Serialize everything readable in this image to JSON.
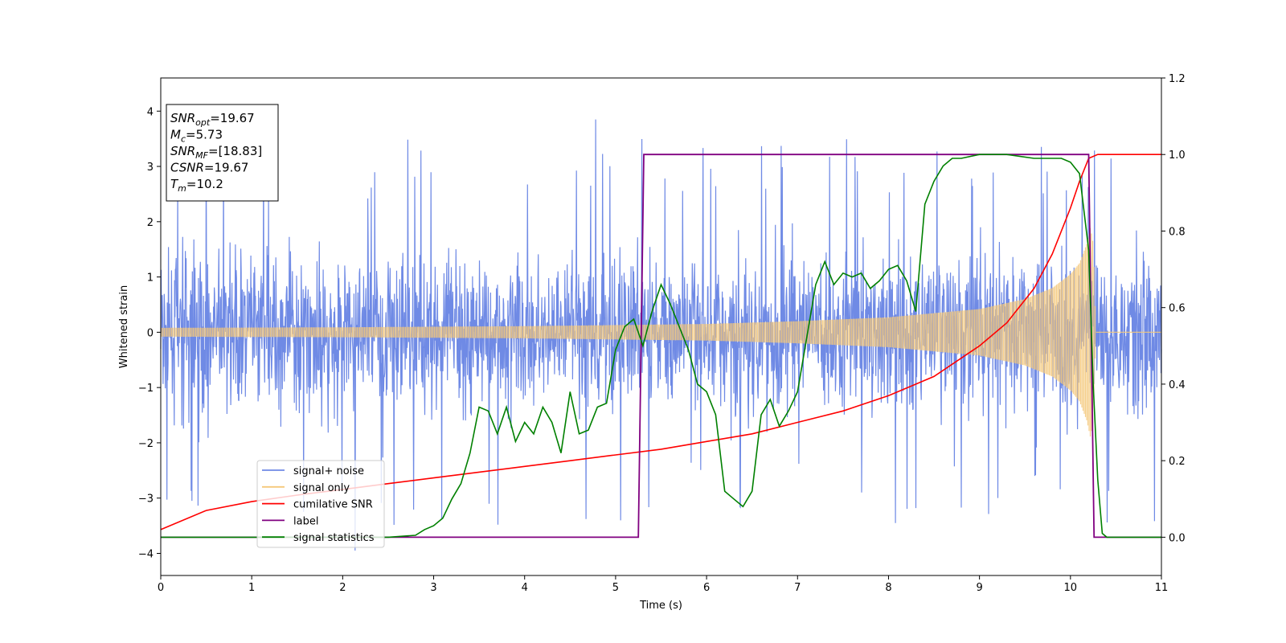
{
  "chart_data": {
    "type": "line",
    "xlabel": "Time (s)",
    "ylabel": "Whitened strain",
    "xlim": [
      0,
      11
    ],
    "ylim": [
      -4.4,
      4.6
    ],
    "y2lim": [
      -0.1,
      1.2
    ],
    "grid": false,
    "x_ticks": [
      "0",
      "1",
      "2",
      "3",
      "4",
      "5",
      "6",
      "7",
      "8",
      "9",
      "10",
      "11"
    ],
    "y_ticks": [
      "4",
      "3",
      "2",
      "1",
      "0",
      "−1",
      "−2",
      "−3",
      "−4"
    ],
    "y2_ticks": [
      "1.2",
      "1.0",
      "0.8",
      "0.6",
      "0.4",
      "0.2",
      "0.0"
    ],
    "legend_placement": "lower-left",
    "colors": {
      "noise": "#6f8ae5",
      "signal": "#f5c87a",
      "csnr": "#ff0000",
      "label": "#800080",
      "stat": "#008000"
    },
    "annotation": {
      "lines": [
        {
          "sym": "SNR",
          "sub": "opt",
          "val": "=19.67"
        },
        {
          "sym": "M",
          "sub": "c",
          "val": "=5.73"
        },
        {
          "sym": "SNR",
          "sub": "MF",
          "val": "=[18.83]"
        },
        {
          "sym": "CSNR",
          "sub": "",
          "val": "=19.67"
        },
        {
          "sym": "T",
          "sub": "m",
          "val": "=10.2"
        }
      ]
    },
    "series": [
      {
        "name": "signal+ noise",
        "axis": "left",
        "style": "dense noise, envelope approx ±2.5, spikes to 3.8",
        "values": []
      },
      {
        "name": "signal only",
        "axis": "left",
        "envelope": [
          [
            0,
            0.08
          ],
          [
            2,
            0.09
          ],
          [
            4,
            0.11
          ],
          [
            6,
            0.15
          ],
          [
            7,
            0.2
          ],
          [
            8,
            0.27
          ],
          [
            9,
            0.42
          ],
          [
            9.5,
            0.6
          ],
          [
            9.8,
            0.8
          ],
          [
            10.0,
            1.05
          ],
          [
            10.1,
            1.25
          ],
          [
            10.18,
            1.6
          ],
          [
            10.22,
            1.9
          ],
          [
            10.25,
            1.6
          ],
          [
            10.28,
            0.0
          ],
          [
            11,
            0.0
          ]
        ]
      },
      {
        "name": "cumilative SNR",
        "axis": "right",
        "x": [
          0,
          0.5,
          1,
          1.5,
          2,
          2.5,
          3,
          3.5,
          4,
          4.5,
          5,
          5.5,
          6,
          6.5,
          7,
          7.5,
          8,
          8.5,
          9,
          9.3,
          9.6,
          9.8,
          10,
          10.1,
          10.2,
          10.3,
          11
        ],
        "values": [
          0.02,
          0.07,
          0.093,
          0.11,
          0.125,
          0.14,
          0.155,
          0.17,
          0.185,
          0.2,
          0.215,
          0.23,
          0.25,
          0.27,
          0.3,
          0.33,
          0.37,
          0.42,
          0.5,
          0.56,
          0.65,
          0.74,
          0.86,
          0.93,
          0.99,
          1.0,
          1.0
        ]
      },
      {
        "name": "label",
        "axis": "right",
        "x": [
          0,
          5.25,
          5.31,
          10.2,
          10.26,
          11
        ],
        "values": [
          0,
          0,
          1,
          1,
          0,
          0
        ]
      },
      {
        "name": "signal statistics",
        "axis": "right",
        "x": [
          0,
          2.5,
          2.8,
          2.9,
          3.0,
          3.1,
          3.2,
          3.3,
          3.4,
          3.5,
          3.6,
          3.7,
          3.8,
          3.9,
          4.0,
          4.1,
          4.2,
          4.3,
          4.4,
          4.5,
          4.6,
          4.7,
          4.8,
          4.9,
          5.0,
          5.1,
          5.2,
          5.3,
          5.4,
          5.5,
          5.6,
          5.7,
          5.8,
          5.9,
          6.0,
          6.1,
          6.2,
          6.3,
          6.4,
          6.5,
          6.6,
          6.7,
          6.8,
          6.9,
          7.0,
          7.1,
          7.2,
          7.3,
          7.4,
          7.5,
          7.6,
          7.7,
          7.8,
          7.9,
          8.0,
          8.1,
          8.2,
          8.3,
          8.4,
          8.5,
          8.6,
          8.7,
          8.8,
          9.0,
          9.3,
          9.6,
          9.9,
          10.0,
          10.1,
          10.2,
          10.25,
          10.3,
          10.35,
          10.4,
          11
        ],
        "values": [
          0.0,
          0.0,
          0.005,
          0.02,
          0.03,
          0.05,
          0.1,
          0.14,
          0.22,
          0.34,
          0.33,
          0.27,
          0.34,
          0.25,
          0.3,
          0.27,
          0.34,
          0.3,
          0.22,
          0.38,
          0.27,
          0.28,
          0.34,
          0.35,
          0.49,
          0.55,
          0.57,
          0.5,
          0.59,
          0.66,
          0.61,
          0.55,
          0.49,
          0.4,
          0.38,
          0.32,
          0.12,
          0.1,
          0.08,
          0.12,
          0.32,
          0.36,
          0.29,
          0.33,
          0.38,
          0.52,
          0.66,
          0.72,
          0.66,
          0.69,
          0.68,
          0.69,
          0.65,
          0.67,
          0.7,
          0.71,
          0.67,
          0.59,
          0.87,
          0.93,
          0.97,
          0.99,
          0.99,
          1.0,
          1.0,
          0.99,
          0.99,
          0.98,
          0.95,
          0.75,
          0.4,
          0.15,
          0.01,
          0.0,
          0.0
        ]
      }
    ]
  }
}
